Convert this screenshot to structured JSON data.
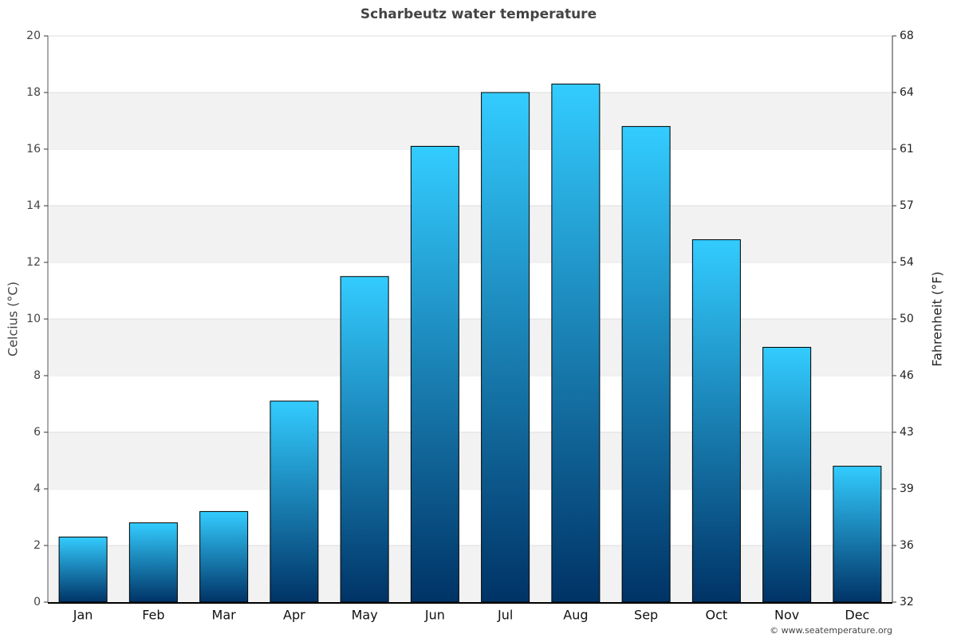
{
  "chart_data": {
    "type": "bar",
    "title": "Scharbeutz water temperature",
    "categories": [
      "Jan",
      "Feb",
      "Mar",
      "Apr",
      "May",
      "Jun",
      "Jul",
      "Aug",
      "Sep",
      "Oct",
      "Nov",
      "Dec"
    ],
    "values": [
      2.3,
      2.8,
      3.2,
      7.1,
      11.5,
      16.1,
      18.0,
      18.3,
      16.8,
      12.8,
      9.0,
      4.8
    ],
    "color": "#33ccff",
    "gradient_end": "#003366",
    "ylabel": "Celcius (°C)",
    "y2label": "Fahrenheit (°F)",
    "ylim": [
      0,
      20
    ],
    "yticks": [
      0,
      2,
      4,
      6,
      8,
      10,
      12,
      14,
      16,
      18,
      20
    ],
    "y2lim": [
      32,
      68
    ],
    "y2ticks": [
      32,
      {
        "value": 35.6,
        "label": "36"
      },
      {
        "value": 39.2,
        "label": "39"
      },
      {
        "value": 42.8,
        "label": "43"
      },
      {
        "value": 46.4,
        "label": "46"
      },
      50,
      {
        "value": 53.6,
        "label": "54"
      },
      {
        "value": 57.2,
        "label": "57"
      },
      {
        "value": 60.8,
        "label": "61"
      },
      {
        "value": 64.4,
        "label": "64"
      },
      68
    ],
    "grid": true,
    "source": "© www.seatemperature.org"
  }
}
